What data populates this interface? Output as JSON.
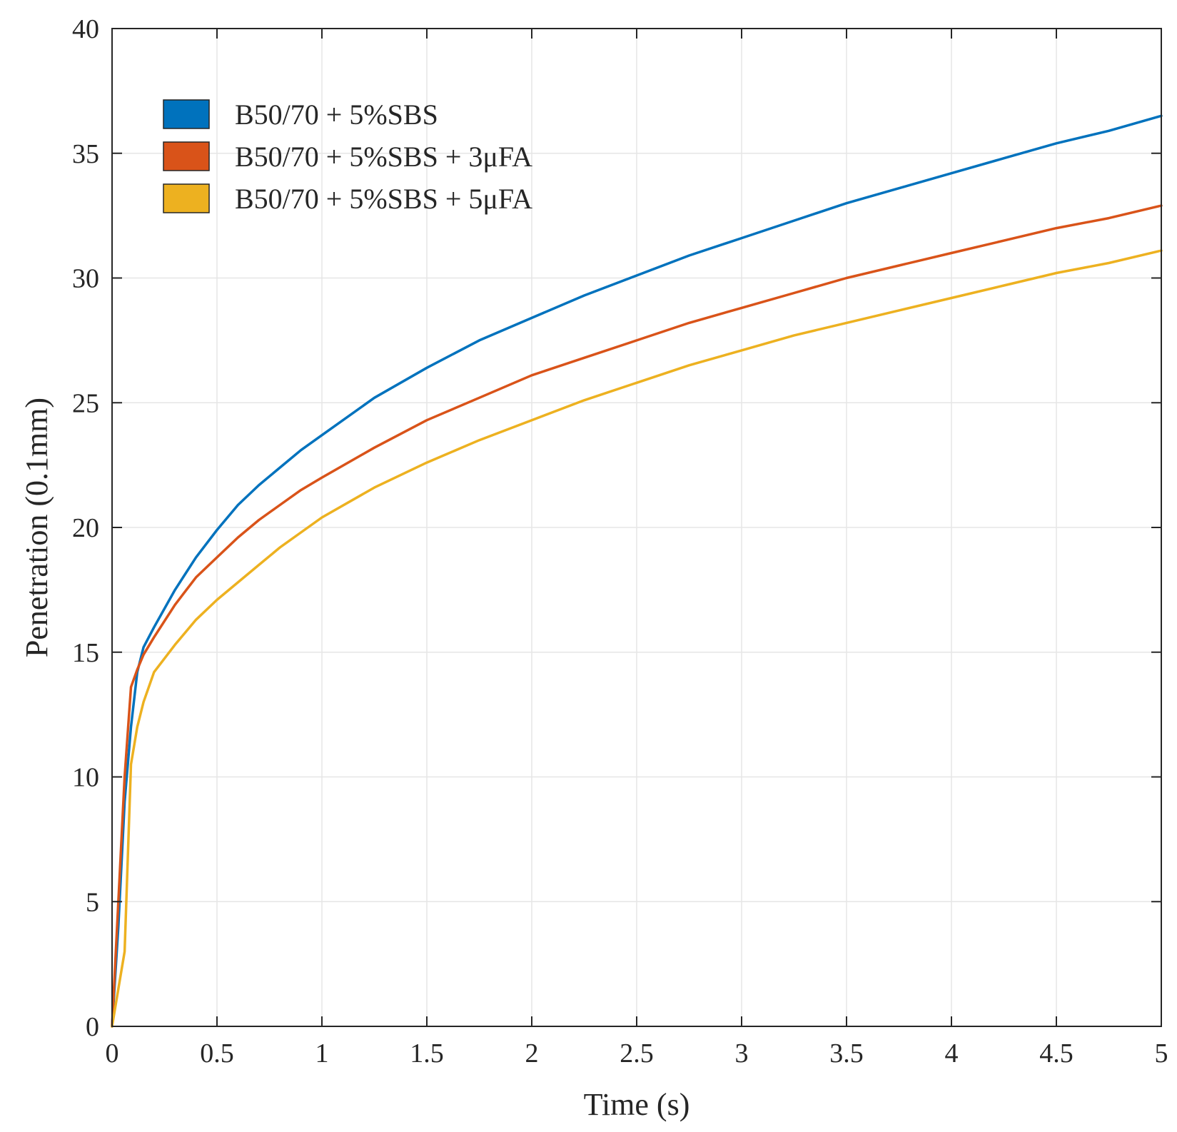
{
  "chart_data": {
    "type": "line",
    "xlabel": "Time (s)",
    "ylabel": "Penetration (0.1mm)",
    "xlim": [
      0,
      5
    ],
    "ylim": [
      0,
      40
    ],
    "x_ticks": [
      "0",
      "0.5",
      "1",
      "1.5",
      "2",
      "2.5",
      "3",
      "3.5",
      "4",
      "4.5",
      "5"
    ],
    "y_ticks": [
      "0",
      "5",
      "10",
      "15",
      "20",
      "25",
      "30",
      "35",
      "40"
    ],
    "grid": true,
    "legend_position": "top-left",
    "series": [
      {
        "name": "B50/70 + 5%SBS",
        "color": "#0072BD",
        "x": [
          0,
          0.03,
          0.06,
          0.09,
          0.12,
          0.15,
          0.2,
          0.3,
          0.4,
          0.5,
          0.6,
          0.7,
          0.8,
          0.9,
          1.0,
          1.25,
          1.5,
          1.75,
          2.0,
          2.25,
          2.5,
          2.75,
          3.0,
          3.25,
          3.5,
          3.75,
          4.0,
          4.25,
          4.5,
          4.75,
          5.0
        ],
        "y": [
          0,
          4.0,
          9.0,
          12.0,
          14.2,
          15.2,
          16.0,
          17.5,
          18.8,
          19.9,
          20.9,
          21.7,
          22.4,
          23.1,
          23.7,
          25.2,
          26.4,
          27.5,
          28.4,
          29.3,
          30.1,
          30.9,
          31.6,
          32.3,
          33.0,
          33.6,
          34.2,
          34.8,
          35.4,
          35.9,
          36.5
        ]
      },
      {
        "name": "B50/70 + 5%SBS + 3μFA",
        "color": "#D95319",
        "x": [
          0,
          0.03,
          0.06,
          0.09,
          0.12,
          0.15,
          0.2,
          0.3,
          0.4,
          0.5,
          0.6,
          0.7,
          0.8,
          0.9,
          1.0,
          1.25,
          1.5,
          1.75,
          2.0,
          2.25,
          2.5,
          2.75,
          3.0,
          3.25,
          3.5,
          3.75,
          4.0,
          4.25,
          4.5,
          4.75,
          5.0
        ],
        "y": [
          0,
          5.0,
          10.0,
          13.6,
          14.3,
          14.9,
          15.6,
          16.9,
          18.0,
          18.8,
          19.6,
          20.3,
          20.9,
          21.5,
          22.0,
          23.2,
          24.3,
          25.2,
          26.1,
          26.8,
          27.5,
          28.2,
          28.8,
          29.4,
          30.0,
          30.5,
          31.0,
          31.5,
          32.0,
          32.4,
          32.9
        ]
      },
      {
        "name": "B50/70 + 5%SBS + 5μFA",
        "color": "#EDB120",
        "x": [
          0,
          0.03,
          0.06,
          0.09,
          0.12,
          0.15,
          0.2,
          0.3,
          0.4,
          0.5,
          0.6,
          0.7,
          0.8,
          0.9,
          1.0,
          1.25,
          1.5,
          1.75,
          2.0,
          2.25,
          2.5,
          2.75,
          3.0,
          3.25,
          3.5,
          3.75,
          4.0,
          4.25,
          4.5,
          4.75,
          5.0
        ],
        "y": [
          0,
          1.5,
          3.0,
          10.5,
          12.0,
          13.0,
          14.2,
          15.3,
          16.3,
          17.1,
          17.8,
          18.5,
          19.2,
          19.8,
          20.4,
          21.6,
          22.6,
          23.5,
          24.3,
          25.1,
          25.8,
          26.5,
          27.1,
          27.7,
          28.2,
          28.7,
          29.2,
          29.7,
          30.2,
          30.6,
          31.1
        ]
      }
    ]
  }
}
